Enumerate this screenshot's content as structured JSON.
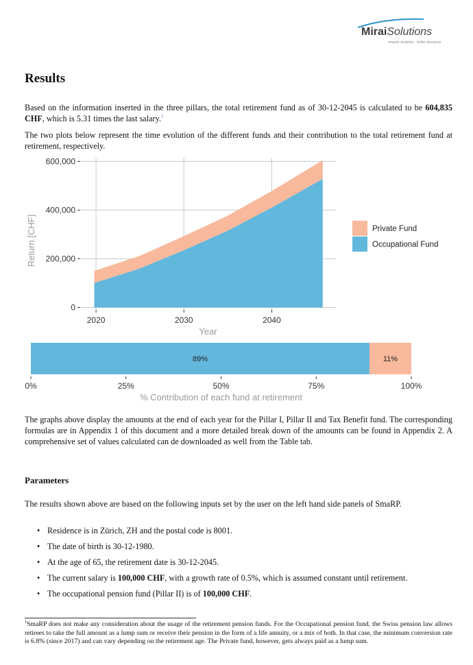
{
  "logo": {
    "brand_bold": "Mirai",
    "brand_light": "Solutions",
    "tagline": "smarter analytics · better decisions"
  },
  "title": "Results",
  "intro": {
    "p1_a": "Based on the information inserted in the three pillars, the total retirement fund as of 30-12-2045 is calculated to be ",
    "p1_amount": "604,835 CHF",
    "p1_b": ", which is 5.31 times the last salary.",
    "p1_sup": "1",
    "p2": "The two plots below represent the time evolution of the different funds and their contribution to the total retirement fund at retirement, respectively."
  },
  "chart_data": [
    {
      "type": "area",
      "stacked": true,
      "xlabel": "Year",
      "ylabel": "Return [CHF]",
      "x": [
        2019.8,
        2025,
        2030,
        2035,
        2040,
        2045.8
      ],
      "xlim": [
        2018.2,
        2047.3
      ],
      "ylim": [
        -10000,
        615000
      ],
      "xticks": [
        2020,
        2030,
        2040
      ],
      "xtick_labels": [
        "2020",
        "2030",
        "2040"
      ],
      "yticks": [
        0,
        200000,
        400000,
        600000
      ],
      "ytick_labels": [
        "0",
        "200,000",
        "400,000",
        "600,000"
      ],
      "grid": true,
      "legend_placement": "right",
      "series": [
        {
          "name": "Occupational Fund",
          "color": "#62b7dc",
          "values": [
            100000,
            160000,
            235000,
            315000,
            410000,
            528000
          ]
        },
        {
          "name": "Private Fund",
          "color": "#f9b99c",
          "values": [
            50000,
            52000,
            58000,
            62000,
            68000,
            76835
          ]
        }
      ],
      "legend_order": [
        "Private Fund",
        "Occupational Fund"
      ]
    },
    {
      "type": "bar",
      "orientation": "horizontal",
      "stacked": true,
      "xlabel": "% Contribution of each fund at retirement",
      "xlim": [
        0,
        100
      ],
      "xticks": [
        0,
        25,
        50,
        75,
        100
      ],
      "xtick_labels": [
        "0%",
        "25%",
        "50%",
        "75%",
        "100%"
      ],
      "series": [
        {
          "name": "Occupational Fund",
          "color": "#62b7dc",
          "value": 89,
          "label": "89%"
        },
        {
          "name": "Private Fund",
          "color": "#f9b99c",
          "value": 11,
          "label": "11%"
        }
      ]
    }
  ],
  "after_chart": "The graphs above display the amounts at the end of each year for the Pillar I, Pillar II and Tax Benefit fund. The corresponding formulas are in Appendix 1 of this document and a more detailed break down of the amounts can be found in Appendix 2. A comprehensive set of values calculated can de downloaded as well from the Table tab.",
  "parameters": {
    "heading": "Parameters",
    "intro": "The results shown above are based on the following inputs set by the user on the left hand side panels of SmaRP.",
    "bullets": [
      {
        "pre": "Residence is in Zürich, ZH and the postal code is 8001.",
        "bold": "",
        "post": ""
      },
      {
        "pre": "The date of birth is 30-12-1980.",
        "bold": "",
        "post": ""
      },
      {
        "pre": "At the age of 65, the retirement date is 30-12-2045.",
        "bold": "",
        "post": ""
      },
      {
        "pre": "The current salary is ",
        "bold": "100,000 CHF",
        "post": ", with a growth rate of 0.5%, which is assumed constant until retirement."
      },
      {
        "pre": "The occupational pension fund (Pillar II) is of ",
        "bold": "100,000 CHF",
        "post": "."
      }
    ]
  },
  "footnote": {
    "mark": "1",
    "text": "SmaRP does not make any consideration about the usage of the retirement pension funds. For the Occupational pension fund, the Swiss pension law allows retirees to take the full amount as a lump sum or receive their pension in the form of a life annuity, or a mix of both. In that case, the minimum conversion rate is 6.8% (since 2017) and can vary depending on the retirement age. The Private fund, however, gets always paid as a lump sum."
  }
}
